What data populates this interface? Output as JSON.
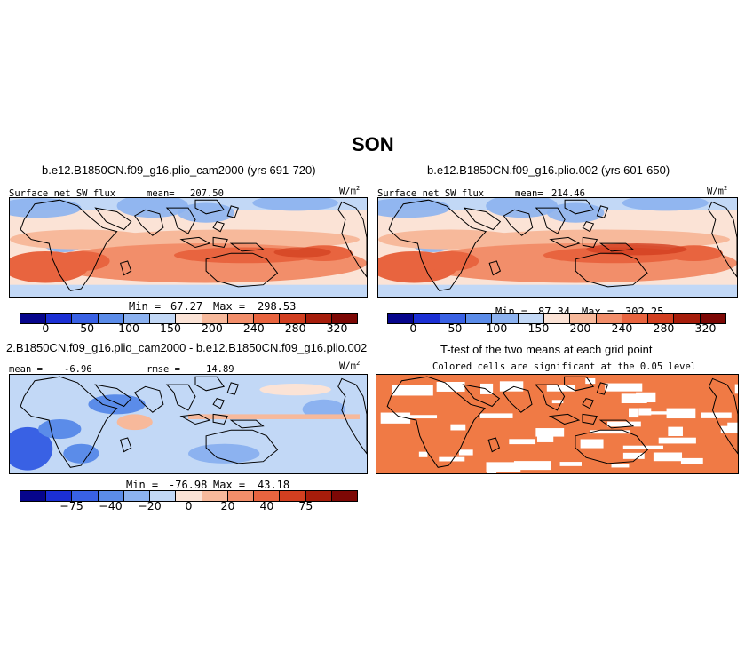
{
  "figure_title": "SON",
  "colors": {
    "scale": [
      "#06058c",
      "#1b2fd4",
      "#3961e4",
      "#5b8ce9",
      "#8cb2f0",
      "#c2d8f6",
      "#fbe3d6",
      "#f7b99b",
      "#f28e6a",
      "#e8643f",
      "#d23f20",
      "#a61d0b",
      "#7d0805"
    ],
    "significant": "#f07a45",
    "nonsignificant": "#ffffff",
    "coast": "#000000"
  },
  "chart_data": [
    {
      "type": "heatmap",
      "title": "b.e12.B1850CN.f09_g16.plio_cam2000 (yrs 691-720)",
      "variable": "Surface net SW flux",
      "mean_label": "mean=",
      "mean": "207.50",
      "units": "W/m",
      "units_exp": "2",
      "min_label": "Min =",
      "min": "67.27",
      "max_label": "Max =",
      "max": "298.53",
      "levels": [
        "0",
        "50",
        "100",
        "150",
        "200",
        "240",
        "280",
        "320"
      ]
    },
    {
      "type": "heatmap",
      "title": "b.e12.B1850CN.f09_g16.plio.002 (yrs 601-650)",
      "variable": "Surface net SW flux",
      "mean_label": "mean=",
      "mean": "214.46",
      "units": "W/m",
      "units_exp": "2",
      "min_label": "Min =",
      "min": "87.34",
      "max_label": "Max =",
      "max": "302.25",
      "levels": [
        "0",
        "50",
        "100",
        "150",
        "200",
        "240",
        "280",
        "320"
      ]
    },
    {
      "type": "heatmap",
      "title": "2.B1850CN.f09_g16.plio_cam2000 - b.e12.B1850CN.f09_g16.plio.002",
      "mean_label": "mean =",
      "mean": "-6.96",
      "rmse_label": "rmse =",
      "rmse": "14.89",
      "units": "W/m",
      "units_exp": "2",
      "min_label": "Min =",
      "min": "-76.98",
      "max_label": "Max =",
      "max": "43.18",
      "levels": [
        "-75",
        "-40",
        "-20",
        "0",
        "20",
        "40",
        "75"
      ]
    },
    {
      "type": "heatmap",
      "title": "T-test of the two means at each grid point",
      "subtitle": "Colored cells are significant at the 0.05 level"
    }
  ]
}
